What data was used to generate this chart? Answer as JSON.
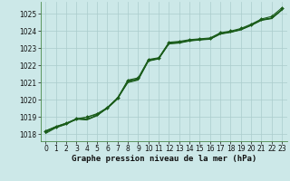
{
  "title": "Graphe pression niveau de la mer (hPa)",
  "bg_color": "#cce8e8",
  "grid_color": "#aacccc",
  "line_color": "#1a5c1a",
  "xlim": [
    -0.5,
    23.5
  ],
  "ylim": [
    1017.6,
    1025.7
  ],
  "yticks": [
    1018,
    1019,
    1020,
    1021,
    1022,
    1023,
    1024,
    1025
  ],
  "xticks": [
    0,
    1,
    2,
    3,
    4,
    5,
    6,
    7,
    8,
    9,
    10,
    11,
    12,
    13,
    14,
    15,
    16,
    17,
    18,
    19,
    20,
    21,
    22,
    23
  ],
  "series": [
    [
      1018.2,
      1018.45,
      1018.65,
      1018.85,
      1019.0,
      1019.15,
      1019.5,
      1020.05,
      1021.05,
      1021.2,
      1022.3,
      1022.4,
      1023.3,
      1023.35,
      1023.45,
      1023.5,
      1023.55,
      1023.85,
      1023.95,
      1024.1,
      1024.35,
      1024.65,
      1024.75,
      1025.25
    ],
    [
      1018.1,
      1018.4,
      1018.6,
      1018.9,
      1018.85,
      1019.1,
      1019.55,
      1020.1,
      1021.0,
      1021.15,
      1022.25,
      1022.38,
      1023.25,
      1023.3,
      1023.42,
      1023.48,
      1023.52,
      1023.82,
      1023.92,
      1024.07,
      1024.32,
      1024.62,
      1024.72,
      1025.22
    ],
    [
      1018.05,
      1018.38,
      1018.58,
      1018.88,
      1018.83,
      1019.08,
      1019.52,
      1020.08,
      1021.12,
      1021.22,
      1022.28,
      1022.4,
      1023.28,
      1023.32,
      1023.44,
      1023.5,
      1023.54,
      1023.84,
      1023.94,
      1024.08,
      1024.34,
      1024.64,
      1024.74,
      1025.24
    ],
    [
      1018.15,
      1018.42,
      1018.62,
      1018.92,
      1018.88,
      1019.12,
      1019.56,
      1020.12,
      1021.08,
      1021.18,
      1022.32,
      1022.42,
      1023.32,
      1023.36,
      1023.46,
      1023.52,
      1023.56,
      1023.86,
      1023.96,
      1024.1,
      1024.36,
      1024.66,
      1024.76,
      1025.26
    ]
  ],
  "marker_line": [
    1018.2,
    1018.45,
    1018.65,
    1018.9,
    1019.0,
    1019.2,
    1019.55,
    1020.12,
    1021.15,
    1021.28,
    1022.35,
    1022.45,
    1023.35,
    1023.4,
    1023.5,
    1023.55,
    1023.6,
    1023.9,
    1024.0,
    1024.15,
    1024.4,
    1024.7,
    1024.85,
    1025.35
  ],
  "tick_fontsize": 5.5,
  "title_fontsize": 6.5
}
